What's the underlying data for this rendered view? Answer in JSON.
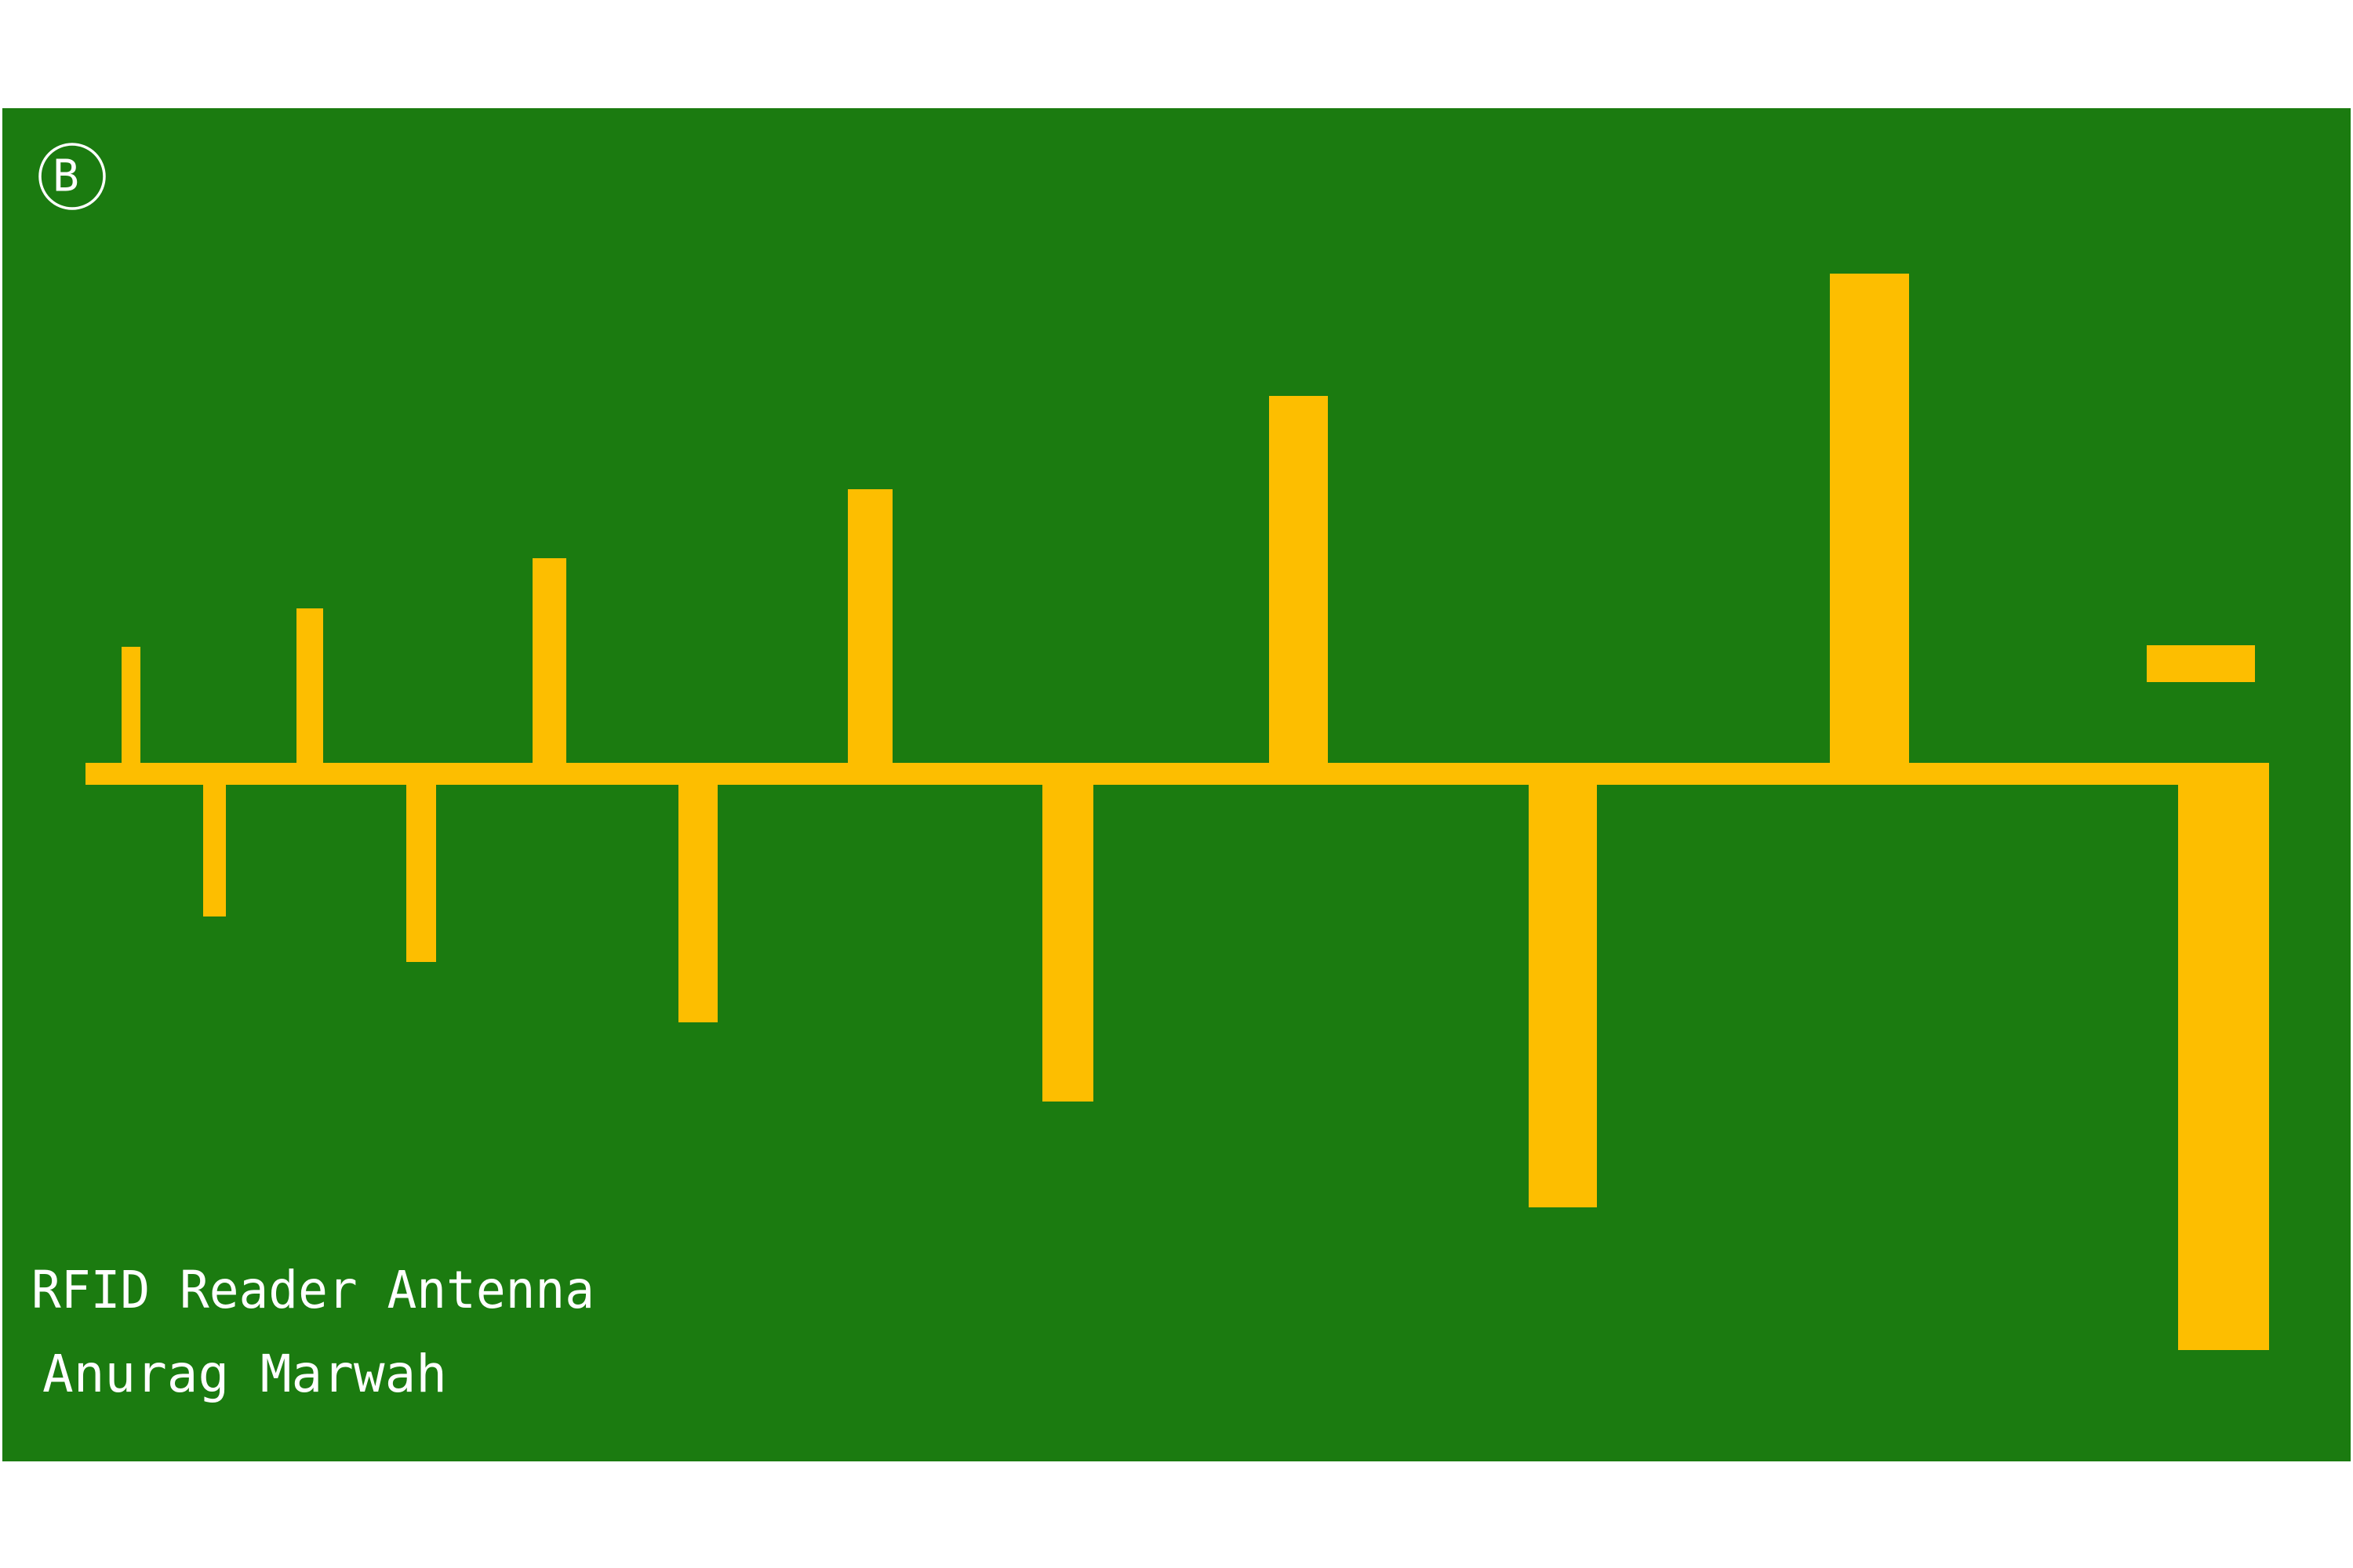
{
  "colors": {
    "page_background": "#ffffff",
    "board": "#1b7b10",
    "copper": "#fdbe00",
    "silkscreen": "#ffffff"
  },
  "board": {
    "side_marker": "B",
    "side_marker_icon": "circled-letter-icon",
    "title": "RFID Reader Antenna",
    "author": "Anurag Marwah"
  }
}
